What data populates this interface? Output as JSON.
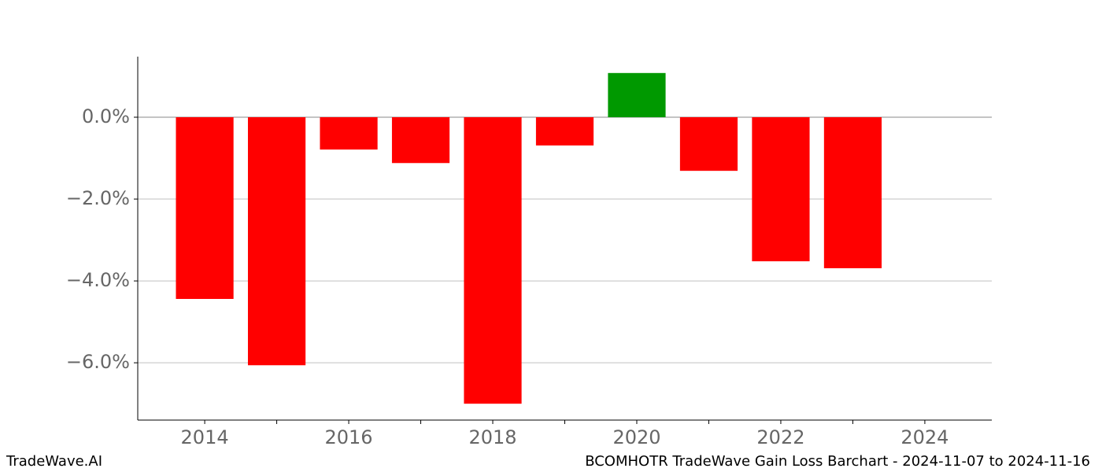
{
  "chart_data": {
    "type": "bar",
    "x": [
      2014,
      2015,
      2016,
      2017,
      2018,
      2019,
      2020,
      2021,
      2022,
      2023
    ],
    "values": [
      -4.44,
      -6.06,
      -0.79,
      -1.12,
      -7.0,
      -0.69,
      1.08,
      -1.31,
      -3.52,
      -3.69
    ],
    "colors": [
      "#ff0000",
      "#ff0000",
      "#ff0000",
      "#ff0000",
      "#ff0000",
      "#ff0000",
      "#009900",
      "#ff0000",
      "#ff0000",
      "#ff0000"
    ],
    "xlim": [
      2013.07,
      2024.93
    ],
    "xticks": [
      2014,
      2016,
      2018,
      2020,
      2022,
      2024
    ],
    "xminorticks": [
      2015,
      2017,
      2019,
      2021,
      2023
    ],
    "ylim": [
      -7.4,
      1.48
    ],
    "yticks": [
      {
        "value": 0,
        "label": "0.0%"
      },
      {
        "value": -2,
        "label": "−2.0%"
      },
      {
        "value": -4,
        "label": "−4.0%"
      },
      {
        "value": -6,
        "label": "−6.0%"
      }
    ],
    "grid": true,
    "watermark": "TradeWave.AI",
    "caption": "BCOMHOTR TradeWave Gain Loss Barchart - 2024-11-07 to 2024-11-16"
  }
}
